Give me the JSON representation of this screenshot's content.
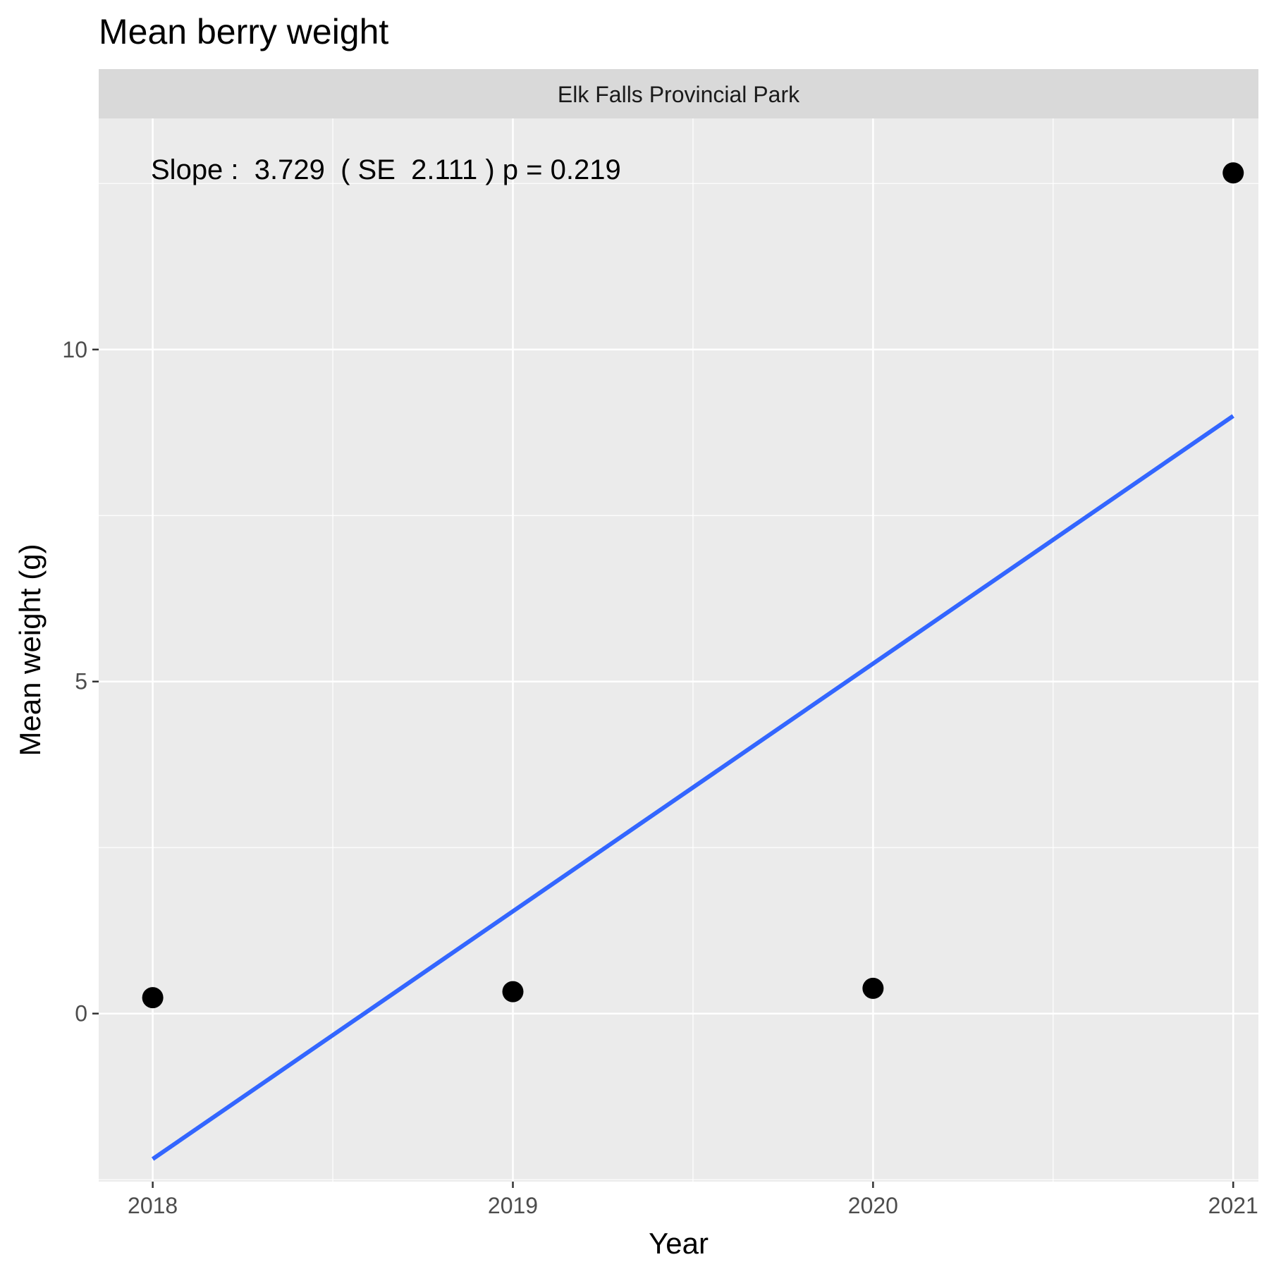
{
  "chart_data": {
    "type": "scatter",
    "title": "Mean berry weight",
    "facet_label": "Elk Falls Provincial Park",
    "xlabel": "Year",
    "ylabel": "Mean weight (g)",
    "x_ticks": [
      "2018",
      "2019",
      "2020",
      "2021"
    ],
    "y_ticks": [
      "0",
      "5",
      "10"
    ],
    "xlim": [
      2017.85,
      2021.07
    ],
    "ylim": [
      -2.53,
      13.48
    ],
    "grid": true,
    "series": [
      {
        "type": "scatter",
        "x": [
          2018,
          2019,
          2020,
          2021
        ],
        "y": [
          0.24,
          0.33,
          0.38,
          12.66
        ]
      },
      {
        "type": "line",
        "x": [
          2018,
          2021
        ],
        "y": [
          -2.19,
          9.0
        ]
      }
    ],
    "annotation": "Slope :  3.729  ( SE  2.111 ) p = 0.219",
    "colors": {
      "panel": "#ebebeb",
      "strip": "#d9d9d9",
      "grid": "#ffffff",
      "points": "#000000",
      "trend_line": "#3366ff"
    }
  }
}
